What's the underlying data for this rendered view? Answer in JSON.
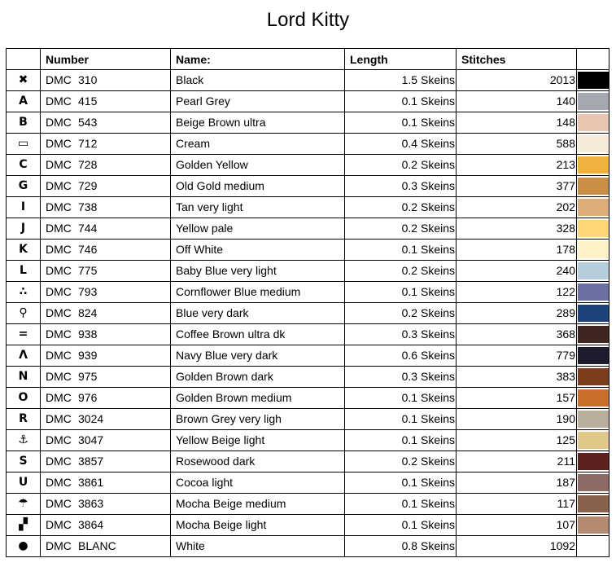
{
  "title": "Lord Kitty",
  "headers": {
    "symbol": "",
    "number": "Number",
    "name": "Name:",
    "length": "Length",
    "stitches": "Stitches",
    "color": ""
  },
  "rows": [
    {
      "symbol": "✖",
      "icon": "cross-icon",
      "brand": "DMC",
      "code": "310",
      "name": "Black",
      "length": "1.5 Skeins",
      "stitches": "2013",
      "color": "#000000"
    },
    {
      "symbol": "A",
      "icon": "letter-a-icon",
      "brand": "DMC",
      "code": "415",
      "name": "Pearl Grey",
      "length": "0.1 Skeins",
      "stitches": "140",
      "color": "#a5a8b0"
    },
    {
      "symbol": "B",
      "icon": "letter-b-icon",
      "brand": "DMC",
      "code": "543",
      "name": "Beige Brown ultra",
      "length": "0.1 Skeins",
      "stitches": "148",
      "color": "#e8c6b1"
    },
    {
      "symbol": "▭",
      "icon": "rectangle-icon",
      "brand": "DMC",
      "code": "712",
      "name": "Cream",
      "length": "0.4 Skeins",
      "stitches": "588",
      "color": "#f6ead8"
    },
    {
      "symbol": "C",
      "icon": "letter-c-icon",
      "brand": "DMC",
      "code": "728",
      "name": "Golden Yellow",
      "length": "0.2 Skeins",
      "stitches": "213",
      "color": "#f1b13d"
    },
    {
      "symbol": "G",
      "icon": "letter-g-icon",
      "brand": "DMC",
      "code": "729",
      "name": "Old Gold medium",
      "length": "0.3 Skeins",
      "stitches": "377",
      "color": "#c98d45"
    },
    {
      "symbol": "I",
      "icon": "letter-i-icon",
      "brand": "DMC",
      "code": "738",
      "name": "Tan very light",
      "length": "0.2 Skeins",
      "stitches": "202",
      "color": "#dcac7a"
    },
    {
      "symbol": "J",
      "icon": "letter-j-icon",
      "brand": "DMC",
      "code": "744",
      "name": "Yellow pale",
      "length": "0.2 Skeins",
      "stitches": "328",
      "color": "#fed676"
    },
    {
      "symbol": "K",
      "icon": "letter-k-icon",
      "brand": "DMC",
      "code": "746",
      "name": "Off White",
      "length": "0.1 Skeins",
      "stitches": "178",
      "color": "#fcf1c7"
    },
    {
      "symbol": "L",
      "icon": "letter-l-icon",
      "brand": "DMC",
      "code": "775",
      "name": "Baby Blue very light",
      "length": "0.2 Skeins",
      "stitches": "240",
      "color": "#b6cedb"
    },
    {
      "symbol": "∴",
      "icon": "dots-icon",
      "brand": "DMC",
      "code": "793",
      "name": "Cornflower Blue medium",
      "length": "0.1 Skeins",
      "stitches": "122",
      "color": "#6a70a0"
    },
    {
      "symbol": "⚲",
      "icon": "magnifier-icon",
      "brand": "DMC",
      "code": "824",
      "name": "Blue very dark",
      "length": "0.2 Skeins",
      "stitches": "289",
      "color": "#1b437a"
    },
    {
      "symbol": "=",
      "icon": "equals-icon",
      "brand": "DMC",
      "code": "938",
      "name": "Coffee Brown ultra dk",
      "length": "0.3 Skeins",
      "stitches": "368",
      "color": "#3e2621"
    },
    {
      "symbol": "Λ",
      "icon": "caret-icon",
      "brand": "DMC",
      "code": "939",
      "name": "Navy Blue very dark",
      "length": "0.6 Skeins",
      "stitches": "779",
      "color": "#1c1c2c"
    },
    {
      "symbol": "N",
      "icon": "letter-n-icon",
      "brand": "DMC",
      "code": "975",
      "name": "Golden Brown dark",
      "length": "0.3 Skeins",
      "stitches": "383",
      "color": "#7a3e1c"
    },
    {
      "symbol": "O",
      "icon": "letter-o-icon",
      "brand": "DMC",
      "code": "976",
      "name": "Golden Brown medium",
      "length": "0.1 Skeins",
      "stitches": "157",
      "color": "#c86d2c"
    },
    {
      "symbol": "R",
      "icon": "letter-r-icon",
      "brand": "DMC",
      "code": "3024",
      "name": "Brown Grey very ligh",
      "length": "0.1 Skeins",
      "stitches": "190",
      "color": "#b9ae9b"
    },
    {
      "symbol": "⚓",
      "icon": "anchor-icon",
      "brand": "DMC",
      "code": "3047",
      "name": "Yellow Beige light",
      "length": "0.1 Skeins",
      "stitches": "125",
      "color": "#e0c889"
    },
    {
      "symbol": "S",
      "icon": "letter-s-icon",
      "brand": "DMC",
      "code": "3857",
      "name": "Rosewood dark",
      "length": "0.2 Skeins",
      "stitches": "211",
      "color": "#5b221f"
    },
    {
      "symbol": "U",
      "icon": "letter-u-icon",
      "brand": "DMC",
      "code": "3861",
      "name": "Cocoa light",
      "length": "0.1 Skeins",
      "stitches": "187",
      "color": "#8e6a64"
    },
    {
      "symbol": "☂",
      "icon": "umbrella-icon",
      "brand": "DMC",
      "code": "3863",
      "name": "Mocha Beige medium",
      "length": "0.1 Skeins",
      "stitches": "117",
      "color": "#8a614a"
    },
    {
      "symbol": "▞",
      "icon": "checker-icon",
      "brand": "DMC",
      "code": "3864",
      "name": "Mocha Beige light",
      "length": "0.1 Skeins",
      "stitches": "107",
      "color": "#b48b70"
    },
    {
      "symbol": "●",
      "icon": "filled-circle-icon",
      "brand": "DMC",
      "code": "BLANC",
      "name": "White",
      "length": "0.8 Skeins",
      "stitches": "1092",
      "color": "#ffffff"
    }
  ]
}
